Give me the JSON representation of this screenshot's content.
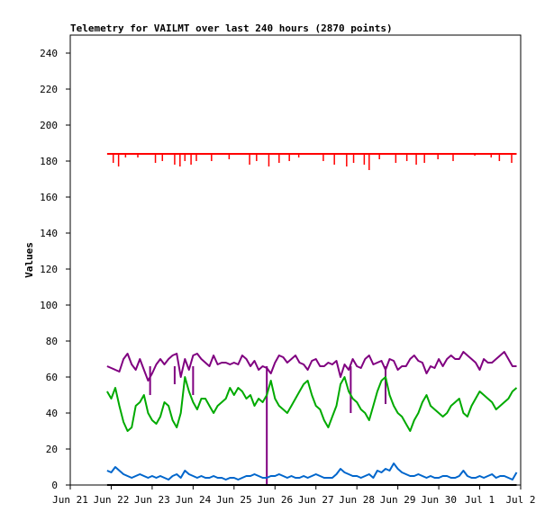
{
  "chart_data": {
    "type": "line",
    "title": "Telemetry for VAILMT over last 240 hours (2870 points)",
    "ylabel": "Values",
    "xlabel": "",
    "ylim": [
      0,
      250
    ],
    "yticks": [
      0,
      20,
      40,
      60,
      80,
      100,
      120,
      140,
      160,
      180,
      200,
      220,
      240
    ],
    "xlim": [
      0,
      11
    ],
    "xticks": [
      {
        "value": 0,
        "label": "Jun 21"
      },
      {
        "value": 1,
        "label": "Jun 22"
      },
      {
        "value": 2,
        "label": "Jun 23"
      },
      {
        "value": 3,
        "label": "Jun 24"
      },
      {
        "value": 4,
        "label": "Jun 25"
      },
      {
        "value": 5,
        "label": "Jun 26"
      },
      {
        "value": 6,
        "label": "Jun 27"
      },
      {
        "value": 7,
        "label": "Jun 28"
      },
      {
        "value": 8,
        "label": "Jun 29"
      },
      {
        "value": 9,
        "label": "Jun 30"
      },
      {
        "value": 10,
        "label": "Jul 1"
      },
      {
        "value": 11,
        "label": "Jul 2"
      }
    ],
    "grid": false,
    "series": [
      {
        "color": "#ff0000",
        "x": [
          0.9,
          1.2,
          1.5,
          2.0,
          2.5,
          3.0,
          3.5,
          4.0,
          4.5,
          5.0,
          5.5,
          6.0,
          6.5,
          7.0,
          7.5,
          8.0,
          8.5,
          9.0,
          9.5,
          10.0,
          10.5,
          10.9
        ],
        "values": [
          184,
          184,
          184,
          184,
          184,
          184,
          184,
          184,
          184,
          184,
          184,
          184,
          184,
          184,
          184,
          184,
          184,
          184,
          184,
          184,
          184,
          184
        ],
        "dips": [
          [
            1.05,
            179
          ],
          [
            1.18,
            177
          ],
          [
            1.35,
            182
          ],
          [
            1.65,
            182
          ],
          [
            2.08,
            179
          ],
          [
            2.25,
            180
          ],
          [
            2.55,
            178
          ],
          [
            2.68,
            177
          ],
          [
            2.8,
            180
          ],
          [
            2.95,
            178
          ],
          [
            3.08,
            180
          ],
          [
            3.45,
            180
          ],
          [
            3.88,
            181
          ],
          [
            4.38,
            178
          ],
          [
            4.55,
            180
          ],
          [
            4.85,
            177
          ],
          [
            5.1,
            179
          ],
          [
            5.35,
            180
          ],
          [
            5.58,
            182
          ],
          [
            6.18,
            180
          ],
          [
            6.45,
            178
          ],
          [
            6.75,
            177
          ],
          [
            6.92,
            179
          ],
          [
            7.18,
            178
          ],
          [
            7.3,
            175
          ],
          [
            7.55,
            181
          ],
          [
            7.95,
            179
          ],
          [
            8.22,
            180
          ],
          [
            8.45,
            178
          ],
          [
            8.65,
            179
          ],
          [
            8.98,
            181
          ],
          [
            9.35,
            180
          ],
          [
            9.88,
            183
          ],
          [
            10.28,
            182
          ],
          [
            10.48,
            180
          ],
          [
            10.78,
            179
          ]
        ]
      },
      {
        "color": "#800080",
        "x": [
          0.9,
          1.0,
          1.1,
          1.2,
          1.3,
          1.4,
          1.5,
          1.6,
          1.7,
          1.8,
          1.9,
          2.0,
          2.1,
          2.2,
          2.3,
          2.4,
          2.5,
          2.6,
          2.7,
          2.8,
          2.9,
          3.0,
          3.1,
          3.2,
          3.3,
          3.4,
          3.5,
          3.6,
          3.7,
          3.8,
          3.9,
          4.0,
          4.1,
          4.2,
          4.3,
          4.4,
          4.5,
          4.6,
          4.7,
          4.8,
          4.9,
          5.0,
          5.1,
          5.2,
          5.3,
          5.4,
          5.5,
          5.6,
          5.7,
          5.8,
          5.9,
          6.0,
          6.1,
          6.2,
          6.3,
          6.4,
          6.5,
          6.6,
          6.7,
          6.8,
          6.9,
          7.0,
          7.1,
          7.2,
          7.3,
          7.4,
          7.5,
          7.6,
          7.7,
          7.8,
          7.9,
          8.0,
          8.1,
          8.2,
          8.3,
          8.4,
          8.5,
          8.6,
          8.7,
          8.8,
          8.9,
          9.0,
          9.1,
          9.2,
          9.3,
          9.4,
          9.5,
          9.6,
          9.7,
          9.8,
          9.9,
          10.0,
          10.1,
          10.2,
          10.3,
          10.4,
          10.5,
          10.6,
          10.7,
          10.8,
          10.9
        ],
        "values": [
          66,
          65,
          64,
          63,
          70,
          73,
          67,
          64,
          70,
          64,
          58,
          62,
          67,
          70,
          67,
          70,
          72,
          73,
          60,
          70,
          64,
          72,
          73,
          70,
          68,
          66,
          72,
          67,
          68,
          68,
          67,
          68,
          67,
          72,
          70,
          66,
          69,
          64,
          66,
          65,
          62,
          68,
          72,
          71,
          68,
          70,
          72,
          68,
          67,
          64,
          69,
          70,
          66,
          66,
          68,
          67,
          69,
          60,
          67,
          64,
          70,
          66,
          65,
          70,
          72,
          67,
          68,
          69,
          64,
          70,
          69,
          64,
          66,
          66,
          70,
          72,
          69,
          68,
          62,
          66,
          65,
          70,
          66,
          70,
          72,
          70,
          70,
          74,
          72,
          70,
          68,
          64,
          70,
          68,
          68,
          70,
          72,
          74,
          70,
          66,
          66
        ],
        "drops": [
          [
            1.95,
            50
          ],
          [
            2.55,
            56
          ],
          [
            3.0,
            50
          ],
          [
            4.8,
            0
          ],
          [
            6.85,
            40
          ],
          [
            7.7,
            45
          ]
        ]
      },
      {
        "color": "#00aa00",
        "x": [
          0.9,
          1.0,
          1.1,
          1.2,
          1.3,
          1.4,
          1.5,
          1.6,
          1.7,
          1.8,
          1.9,
          2.0,
          2.1,
          2.2,
          2.3,
          2.4,
          2.5,
          2.6,
          2.7,
          2.8,
          2.9,
          3.0,
          3.1,
          3.2,
          3.3,
          3.4,
          3.5,
          3.6,
          3.7,
          3.8,
          3.9,
          4.0,
          4.1,
          4.2,
          4.3,
          4.4,
          4.5,
          4.6,
          4.7,
          4.8,
          4.9,
          5.0,
          5.1,
          5.2,
          5.3,
          5.4,
          5.5,
          5.6,
          5.7,
          5.8,
          5.9,
          6.0,
          6.1,
          6.2,
          6.3,
          6.4,
          6.5,
          6.6,
          6.7,
          6.8,
          6.9,
          7.0,
          7.1,
          7.2,
          7.3,
          7.4,
          7.5,
          7.6,
          7.7,
          7.8,
          7.9,
          8.0,
          8.1,
          8.2,
          8.3,
          8.4,
          8.5,
          8.6,
          8.7,
          8.8,
          8.9,
          9.0,
          9.1,
          9.2,
          9.3,
          9.4,
          9.5,
          9.6,
          9.7,
          9.8,
          9.9,
          10.0,
          10.1,
          10.2,
          10.3,
          10.4,
          10.5,
          10.6,
          10.7,
          10.8,
          10.9
        ],
        "values": [
          52,
          48,
          54,
          44,
          35,
          30,
          32,
          44,
          46,
          50,
          40,
          36,
          34,
          38,
          46,
          44,
          36,
          32,
          40,
          60,
          52,
          46,
          42,
          48,
          48,
          44,
          40,
          44,
          46,
          48,
          54,
          50,
          54,
          52,
          48,
          50,
          44,
          48,
          46,
          50,
          58,
          48,
          44,
          42,
          40,
          44,
          48,
          52,
          56,
          58,
          50,
          44,
          42,
          36,
          32,
          38,
          44,
          56,
          60,
          52,
          48,
          46,
          42,
          40,
          36,
          44,
          52,
          58,
          60,
          50,
          44,
          40,
          38,
          34,
          30,
          36,
          40,
          46,
          50,
          44,
          42,
          40,
          38,
          40,
          44,
          46,
          48,
          40,
          38,
          44,
          48,
          52,
          50,
          48,
          46,
          42,
          44,
          46,
          48,
          52,
          54
        ]
      },
      {
        "color": "#0066cc",
        "x": [
          0.9,
          1.0,
          1.1,
          1.2,
          1.3,
          1.4,
          1.5,
          1.6,
          1.7,
          1.8,
          1.9,
          2.0,
          2.1,
          2.2,
          2.3,
          2.4,
          2.5,
          2.6,
          2.7,
          2.8,
          2.9,
          3.0,
          3.1,
          3.2,
          3.3,
          3.4,
          3.5,
          3.6,
          3.7,
          3.8,
          3.9,
          4.0,
          4.1,
          4.2,
          4.3,
          4.4,
          4.5,
          4.6,
          4.7,
          4.8,
          4.9,
          5.0,
          5.1,
          5.2,
          5.3,
          5.4,
          5.5,
          5.6,
          5.7,
          5.8,
          5.9,
          6.0,
          6.1,
          6.2,
          6.3,
          6.4,
          6.5,
          6.6,
          6.7,
          6.8,
          6.9,
          7.0,
          7.1,
          7.2,
          7.3,
          7.4,
          7.5,
          7.6,
          7.7,
          7.8,
          7.9,
          8.0,
          8.1,
          8.2,
          8.3,
          8.4,
          8.5,
          8.6,
          8.7,
          8.8,
          8.9,
          9.0,
          9.1,
          9.2,
          9.3,
          9.4,
          9.5,
          9.6,
          9.7,
          9.8,
          9.9,
          10.0,
          10.1,
          10.2,
          10.3,
          10.4,
          10.5,
          10.6,
          10.7,
          10.8,
          10.9
        ],
        "values": [
          8,
          7,
          10,
          8,
          6,
          5,
          4,
          5,
          6,
          5,
          4,
          5,
          4,
          5,
          4,
          3,
          5,
          6,
          4,
          8,
          6,
          5,
          4,
          5,
          4,
          4,
          5,
          4,
          4,
          3,
          4,
          4,
          3,
          4,
          5,
          5,
          6,
          5,
          4,
          4,
          5,
          5,
          6,
          5,
          4,
          5,
          4,
          4,
          5,
          4,
          5,
          6,
          5,
          4,
          4,
          4,
          6,
          9,
          7,
          6,
          5,
          5,
          4,
          5,
          6,
          4,
          8,
          7,
          9,
          8,
          12,
          9,
          7,
          6,
          5,
          5,
          6,
          5,
          4,
          5,
          4,
          4,
          5,
          5,
          4,
          4,
          5,
          8,
          5,
          4,
          4,
          5,
          4,
          5,
          6,
          4,
          5,
          5,
          4,
          3,
          7
        ]
      },
      {
        "color": "#000000",
        "x": [
          0.9,
          10.9
        ],
        "values": [
          0,
          0
        ]
      }
    ]
  }
}
